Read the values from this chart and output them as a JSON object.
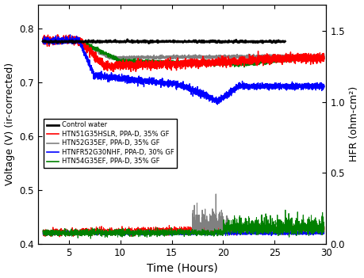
{
  "title": "",
  "xlabel": "Time (Hours)",
  "ylabel_left": "Voltage (V) (ir-corrected)",
  "ylabel_right": "HFR (ohm-cm²)",
  "xlim": [
    2,
    30
  ],
  "ylim_left": [
    0.4,
    0.845
  ],
  "ylim_right": [
    0.0,
    1.6875
  ],
  "xticks": [
    5,
    10,
    15,
    20,
    25,
    30
  ],
  "yticks_left": [
    0.4,
    0.5,
    0.6,
    0.7,
    0.8
  ],
  "yticks_right": [
    0.0,
    0.5,
    1.0,
    1.5
  ],
  "legend": [
    {
      "label": "Control water",
      "color": "#000000",
      "lw": 2.0
    },
    {
      "label": "HTN51G35HSLR, PPA-D, 35% GF",
      "color": "#ff0000",
      "lw": 1.0
    },
    {
      "label": "HTN52G35EF, PPA-D, 35% GF",
      "color": "#808080",
      "lw": 1.0
    },
    {
      "label": "HTNFR52G30NHF, PPA-D, 30% GF",
      "color": "#0000ff",
      "lw": 1.0
    },
    {
      "label": "HTN54G35EF, PPA-D, 35% GF",
      "color": "#008000",
      "lw": 1.0
    }
  ],
  "background_color": "#ffffff",
  "figsize": [
    4.59,
    3.51
  ],
  "dpi": 100
}
